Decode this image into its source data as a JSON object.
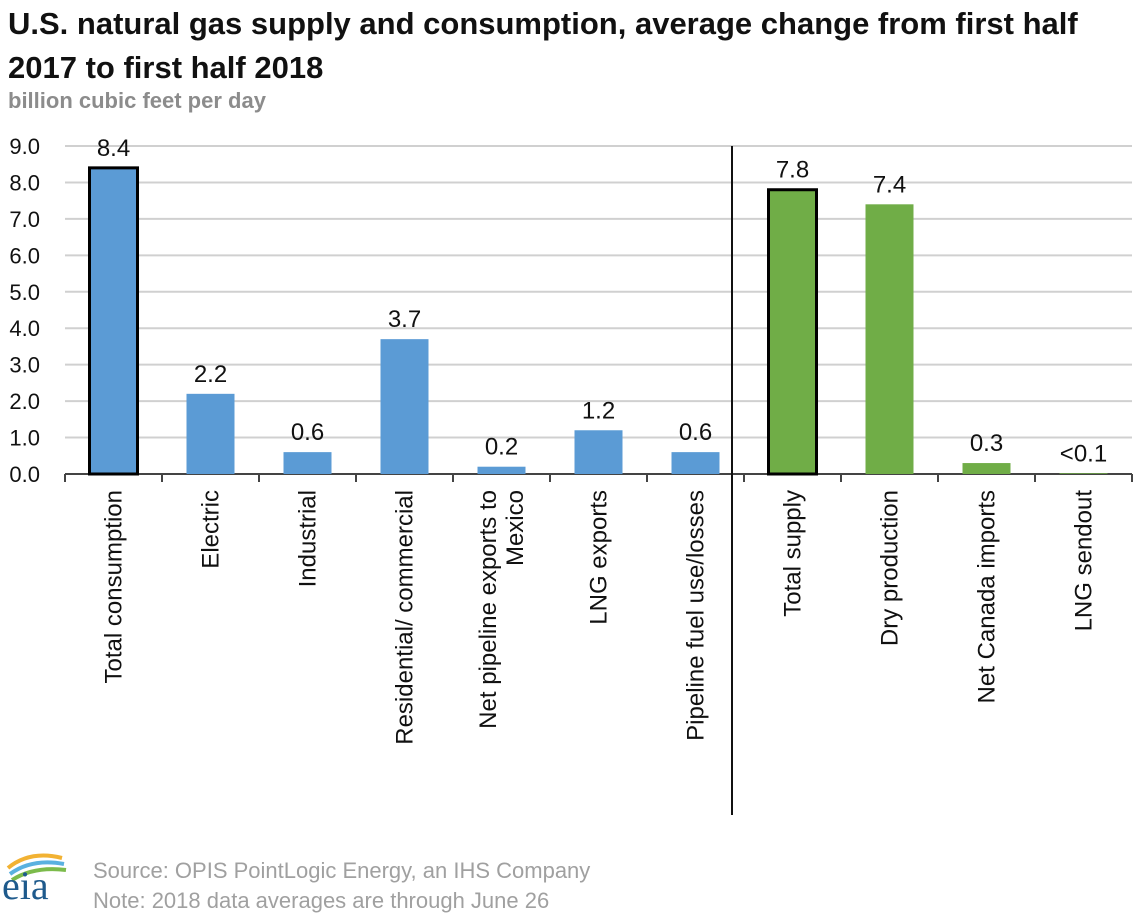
{
  "chart_data": {
    "type": "bar",
    "title": "U.S. natural gas supply and consumption, average change from first half 2017 to first half 2018",
    "subtitle": "billion cubic feet per day",
    "categories": [
      "Total consumption",
      "Electric",
      "Industrial",
      "Residential/ commercial",
      "Net pipeline exports to Mexico",
      "LNG exports",
      "Pipeline fuel use/losses",
      "Total supply",
      "Dry production",
      "Net Canada imports",
      "LNG sendout"
    ],
    "values": [
      8.4,
      2.2,
      0.6,
      3.7,
      0.2,
      1.2,
      0.6,
      7.8,
      7.4,
      0.3,
      0.02
    ],
    "value_labels": [
      "8.4",
      "2.2",
      "0.6",
      "3.7",
      "0.2",
      "1.2",
      "0.6",
      "7.8",
      "7.4",
      "0.3",
      "<0.1"
    ],
    "colors": [
      "#5b9bd5",
      "#5b9bd5",
      "#5b9bd5",
      "#5b9bd5",
      "#5b9bd5",
      "#5b9bd5",
      "#5b9bd5",
      "#70ad47",
      "#70ad47",
      "#70ad47",
      "#70ad47"
    ],
    "edgecolors": [
      "#000000",
      null,
      null,
      null,
      null,
      null,
      null,
      "#000000",
      null,
      null,
      null
    ],
    "ylim": [
      0,
      9
    ],
    "yticks": [
      {
        "value": 0,
        "label": "0.0"
      },
      {
        "value": 1,
        "label": "1.0"
      },
      {
        "value": 2,
        "label": "2.0"
      },
      {
        "value": 3,
        "label": "3.0"
      },
      {
        "value": 4,
        "label": "4.0"
      },
      {
        "value": 5,
        "label": "5.0"
      },
      {
        "value": 6,
        "label": "6.0"
      },
      {
        "value": 7,
        "label": "7.0"
      },
      {
        "value": 8,
        "label": "8.0"
      },
      {
        "value": 9,
        "label": "9.0"
      }
    ],
    "grid": true,
    "logo": "eia",
    "source": "Source: OPIS PointLogic Energy, an IHS Company",
    "note": "Note: 2018 data averages are through June 26"
  }
}
